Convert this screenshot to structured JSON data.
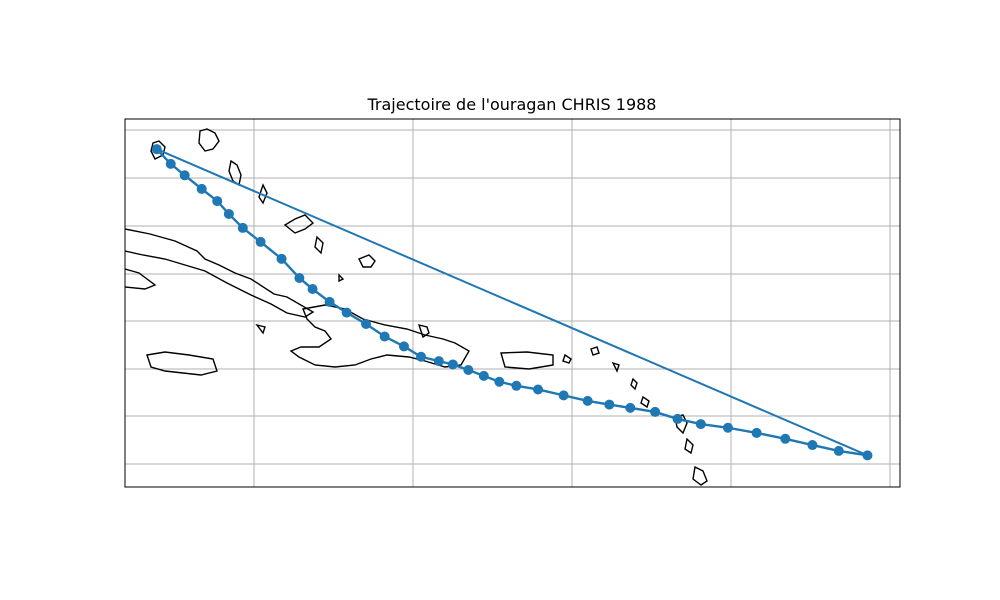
{
  "chart_data": {
    "type": "map",
    "title": "Trajectoire de l'ouragan CHRIS 1988",
    "track_color": "#1f77b4",
    "coast_color": "#000000",
    "grid": true,
    "grid_color": "#b0b0b0",
    "frame_color": "#000000",
    "points": [
      [
        0.041,
        0.082
      ],
      [
        0.059,
        0.122
      ],
      [
        0.077,
        0.153
      ],
      [
        0.099,
        0.19
      ],
      [
        0.119,
        0.223
      ],
      [
        0.134,
        0.258
      ],
      [
        0.152,
        0.296
      ],
      [
        0.175,
        0.334
      ],
      [
        0.202,
        0.38
      ],
      [
        0.225,
        0.432
      ],
      [
        0.242,
        0.462
      ],
      [
        0.264,
        0.497
      ],
      [
        0.286,
        0.526
      ],
      [
        0.311,
        0.557
      ],
      [
        0.335,
        0.591
      ],
      [
        0.36,
        0.618
      ],
      [
        0.382,
        0.646
      ],
      [
        0.405,
        0.658
      ],
      [
        0.423,
        0.667
      ],
      [
        0.443,
        0.682
      ],
      [
        0.463,
        0.698
      ],
      [
        0.483,
        0.714
      ],
      [
        0.505,
        0.725
      ],
      [
        0.533,
        0.735
      ],
      [
        0.566,
        0.751
      ],
      [
        0.597,
        0.766
      ],
      [
        0.625,
        0.776
      ],
      [
        0.652,
        0.785
      ],
      [
        0.684,
        0.796
      ],
      [
        0.713,
        0.815
      ],
      [
        0.743,
        0.829
      ],
      [
        0.778,
        0.839
      ],
      [
        0.815,
        0.853
      ],
      [
        0.852,
        0.869
      ],
      [
        0.887,
        0.886
      ],
      [
        0.921,
        0.902
      ],
      [
        0.958,
        0.914
      ]
    ]
  }
}
